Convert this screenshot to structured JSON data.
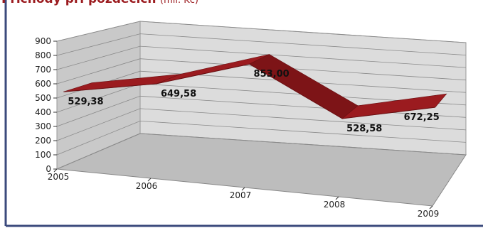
{
  "chart_data": {
    "type": "line3d",
    "title": "Příchody při pozdecích",
    "subtitle": "(mil. Kč)",
    "categories": [
      "2005",
      "2006",
      "2007",
      "2008",
      "2009"
    ],
    "values": [
      529.38,
      649.58,
      853.0,
      528.58,
      672.25
    ],
    "value_labels": [
      "529,38",
      "649,58",
      "853,00",
      "528,58",
      "672,25"
    ],
    "color": "#9b1b1f",
    "ylim": [
      0,
      900
    ],
    "yticks": [
      0,
      100,
      200,
      300,
      400,
      500,
      600,
      700,
      800,
      900
    ],
    "grid": true
  }
}
